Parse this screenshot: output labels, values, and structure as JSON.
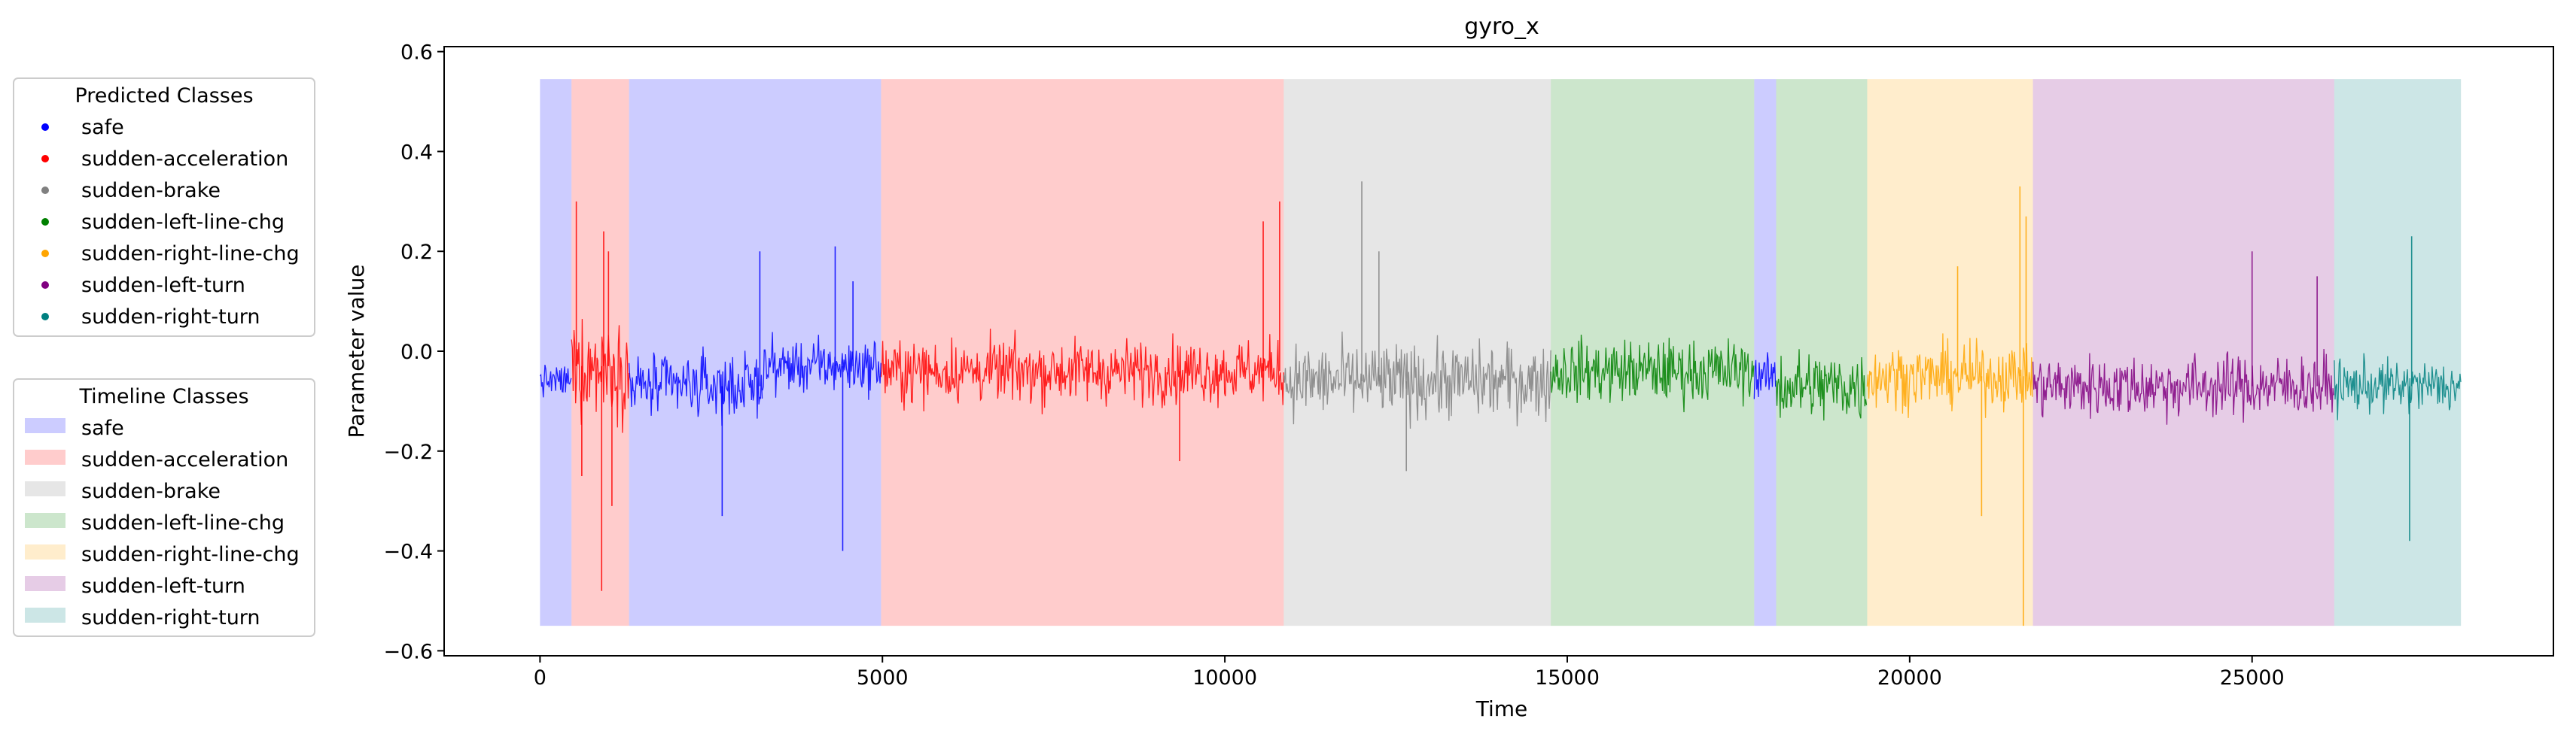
{
  "chart_data": {
    "type": "line",
    "title": "gyro_x",
    "xlabel": "Time",
    "ylabel": "Parameter value",
    "xlim": [
      -1400,
      29400
    ],
    "ylim": [
      -0.61,
      0.61
    ],
    "x_ticks": [
      0,
      5000,
      10000,
      15000,
      20000,
      25000
    ],
    "x_tick_labels": [
      "0",
      "5000",
      "10000",
      "15000",
      "20000",
      "25000"
    ],
    "y_ticks": [
      -0.6,
      -0.4,
      -0.2,
      0.0,
      0.2,
      0.4,
      0.6
    ],
    "y_tick_labels": [
      "−0.6",
      "−0.4",
      "−0.2",
      "0.0",
      "0.2",
      "0.4",
      "0.6"
    ],
    "band_range": [
      -0.55,
      0.545
    ],
    "class_colors": {
      "safe": "#0000ff",
      "sudden-acceleration": "#ff0000",
      "sudden-brake": "#808080",
      "sudden-left-line-chg": "#008000",
      "sudden-right-line-chg": "#ffa500",
      "sudden-left-turn": "#800080",
      "sudden-right-turn": "#008080"
    },
    "timeline_segments": [
      {
        "class": "safe",
        "start": 0,
        "end": 460
      },
      {
        "class": "sudden-acceleration",
        "start": 460,
        "end": 1300
      },
      {
        "class": "safe",
        "start": 1300,
        "end": 4980
      },
      {
        "class": "sudden-acceleration",
        "start": 4980,
        "end": 10860
      },
      {
        "class": "sudden-brake",
        "start": 10860,
        "end": 14760
      },
      {
        "class": "sudden-left-line-chg",
        "start": 14760,
        "end": 17730
      },
      {
        "class": "safe",
        "start": 17730,
        "end": 18050
      },
      {
        "class": "sudden-left-line-chg",
        "start": 18050,
        "end": 19380
      },
      {
        "class": "sudden-right-line-chg",
        "start": 19380,
        "end": 21800
      },
      {
        "class": "sudden-left-turn",
        "start": 21800,
        "end": 26200
      },
      {
        "class": "sudden-right-turn",
        "start": 26200,
        "end": 28050
      }
    ],
    "predicted_segments": [
      {
        "class": "safe",
        "start": 0,
        "end": 460,
        "center": -0.06,
        "amp": 0.03
      },
      {
        "class": "sudden-acceleration",
        "start": 460,
        "end": 1300,
        "center": -0.03,
        "amp": 0.09
      },
      {
        "class": "safe",
        "start": 1300,
        "end": 3250,
        "center": -0.07,
        "amp": 0.06
      },
      {
        "class": "safe",
        "start": 3250,
        "end": 4980,
        "center": -0.03,
        "amp": 0.05
      },
      {
        "class": "sudden-acceleration",
        "start": 4980,
        "end": 10860,
        "center": -0.04,
        "amp": 0.06
      },
      {
        "class": "sudden-brake",
        "start": 10860,
        "end": 14760,
        "center": -0.06,
        "amp": 0.07
      },
      {
        "class": "sudden-left-line-chg",
        "start": 14760,
        "end": 17730,
        "center": -0.04,
        "amp": 0.06
      },
      {
        "class": "safe",
        "start": 17730,
        "end": 18050,
        "center": -0.05,
        "amp": 0.04
      },
      {
        "class": "sudden-left-line-chg",
        "start": 18050,
        "end": 19380,
        "center": -0.07,
        "amp": 0.07
      },
      {
        "class": "sudden-right-line-chg",
        "start": 19380,
        "end": 21800,
        "center": -0.05,
        "amp": 0.06
      },
      {
        "class": "sudden-left-turn",
        "start": 21800,
        "end": 26200,
        "center": -0.07,
        "amp": 0.06
      },
      {
        "class": "sudden-right-turn",
        "start": 26200,
        "end": 28050,
        "center": -0.07,
        "amp": 0.05
      }
    ],
    "spikes": [
      {
        "x": 530,
        "y": 0.3
      },
      {
        "x": 610,
        "y": -0.25
      },
      {
        "x": 900,
        "y": -0.48
      },
      {
        "x": 930,
        "y": 0.24
      },
      {
        "x": 1000,
        "y": 0.2
      },
      {
        "x": 1050,
        "y": -0.31
      },
      {
        "x": 2660,
        "y": -0.33
      },
      {
        "x": 3210,
        "y": 0.2
      },
      {
        "x": 4310,
        "y": 0.21
      },
      {
        "x": 4420,
        "y": -0.4
      },
      {
        "x": 4570,
        "y": 0.14
      },
      {
        "x": 9340,
        "y": -0.22
      },
      {
        "x": 10560,
        "y": 0.26
      },
      {
        "x": 10800,
        "y": 0.3
      },
      {
        "x": 12000,
        "y": 0.34
      },
      {
        "x": 12250,
        "y": 0.2
      },
      {
        "x": 12650,
        "y": -0.24
      },
      {
        "x": 20700,
        "y": 0.17
      },
      {
        "x": 21050,
        "y": -0.33
      },
      {
        "x": 21610,
        "y": 0.33
      },
      {
        "x": 21660,
        "y": -0.55
      },
      {
        "x": 21700,
        "y": 0.27
      },
      {
        "x": 25000,
        "y": 0.2
      },
      {
        "x": 25950,
        "y": 0.15
      },
      {
        "x": 27300,
        "y": -0.38
      },
      {
        "x": 27330,
        "y": 0.23
      }
    ]
  },
  "legend_predicted": {
    "title": "Predicted Classes",
    "items": [
      {
        "label": "safe",
        "color": "#0000ff"
      },
      {
        "label": "sudden-acceleration",
        "color": "#ff0000"
      },
      {
        "label": "sudden-brake",
        "color": "#808080"
      },
      {
        "label": "sudden-left-line-chg",
        "color": "#008000"
      },
      {
        "label": "sudden-right-line-chg",
        "color": "#ffa500"
      },
      {
        "label": "sudden-left-turn",
        "color": "#800080"
      },
      {
        "label": "sudden-right-turn",
        "color": "#008080"
      }
    ]
  },
  "legend_timeline": {
    "title": "Timeline Classes",
    "items": [
      {
        "label": "safe",
        "color": "#0000ff"
      },
      {
        "label": "sudden-acceleration",
        "color": "#ff0000"
      },
      {
        "label": "sudden-brake",
        "color": "#808080"
      },
      {
        "label": "sudden-left-line-chg",
        "color": "#008000"
      },
      {
        "label": "sudden-right-line-chg",
        "color": "#ffa500"
      },
      {
        "label": "sudden-left-turn",
        "color": "#800080"
      },
      {
        "label": "sudden-right-turn",
        "color": "#008080"
      }
    ]
  }
}
